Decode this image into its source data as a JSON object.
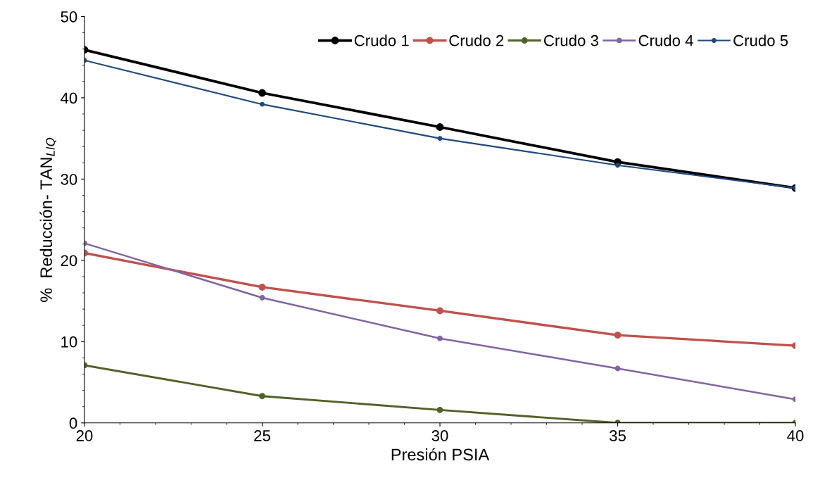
{
  "chart_data": {
    "type": "line",
    "xlabel": "Presión PSIA",
    "ylabel": "%  Reducción- TAN$_{LIQ}$",
    "x": [
      20,
      25,
      30,
      35,
      40
    ],
    "series": [
      {
        "name": "Crudo 1",
        "color": "#000000",
        "values": [
          45.9,
          40.6,
          36.4,
          32.1,
          28.9
        ]
      },
      {
        "name": "Crudo 2",
        "color": "#c0504d",
        "values": [
          20.9,
          16.7,
          13.8,
          10.8,
          9.5
        ]
      },
      {
        "name": "Crudo 3",
        "color": "#4f6228",
        "values": [
          7.1,
          3.3,
          1.6,
          0,
          0
        ]
      },
      {
        "name": "Crudo 4",
        "color": "#8064a2",
        "values": [
          22.1,
          15.4,
          10.4,
          6.7,
          2.9
        ]
      },
      {
        "name": "Crudo 5",
        "color": "#1f497d",
        "values": [
          44.6,
          39.2,
          35.0,
          31.7,
          28.9
        ]
      }
    ],
    "xlim": [
      20,
      40
    ],
    "xticks": [
      20,
      25,
      30,
      35,
      40
    ],
    "ylim": [
      0,
      50
    ],
    "yticks": [
      0,
      10,
      20,
      30,
      40,
      50
    ],
    "marker": "circle",
    "line_style": "solid",
    "grid": false,
    "legend": "top right"
  }
}
